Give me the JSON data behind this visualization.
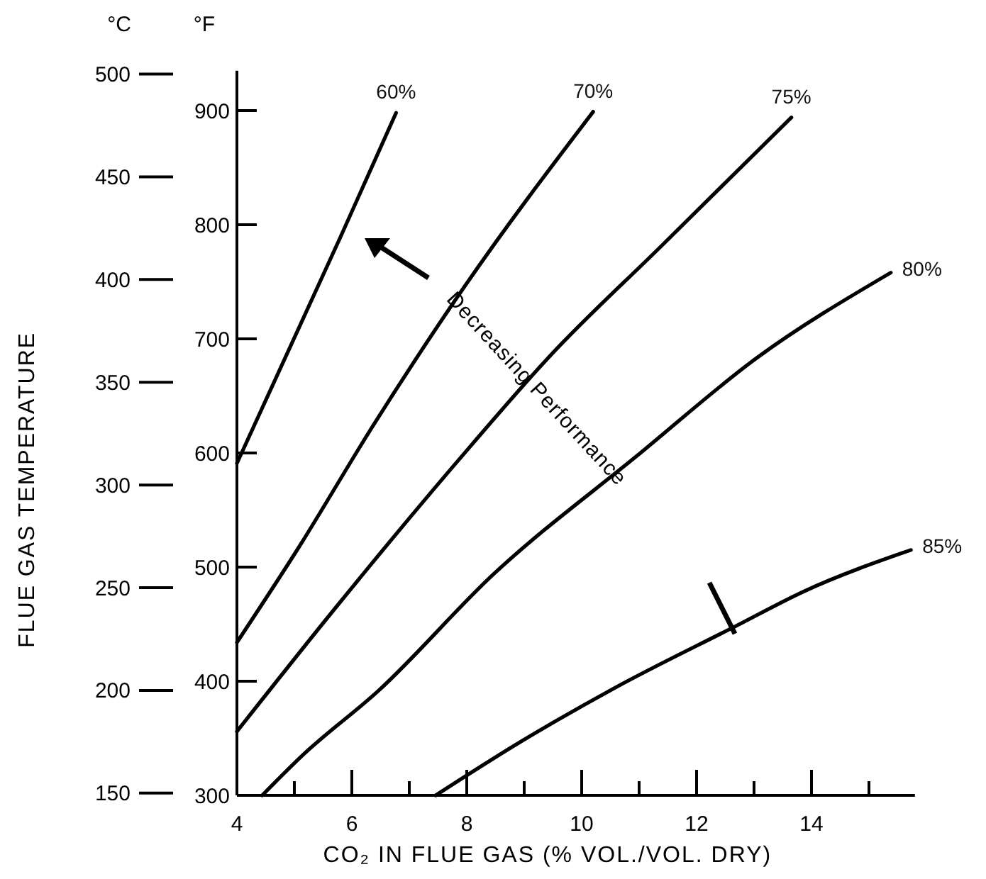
{
  "chart_data": {
    "type": "line",
    "xlabel": "CO₂ IN FLUE GAS (% VOL./VOL. DRY)",
    "ylabel": "°F",
    "y2label": "°C",
    "annotations": [
      "FLUE GAS TEMPERATURE",
      "Decreasing Performance"
    ],
    "xlim": [
      4,
      15.8
    ],
    "xticks": [
      4,
      {
        "value": 5,
        "label": null
      },
      6,
      {
        "value": 7,
        "label": null
      },
      8,
      {
        "value": 9,
        "label": null
      },
      10,
      {
        "value": 11,
        "label": null
      },
      12,
      {
        "value": 13,
        "label": null
      },
      14,
      {
        "value": 15,
        "label": null
      }
    ],
    "ylim": [
      300,
      935
    ],
    "yticks": [
      300,
      400,
      500,
      600,
      700,
      800,
      900
    ],
    "y2lim": [
      148.9,
      501.7
    ],
    "y2ticks": [
      150,
      200,
      250,
      300,
      350,
      400,
      450,
      500
    ],
    "grid": false,
    "marker": "none",
    "line_style": "solid",
    "series": [
      {
        "name": "60%",
        "color": "#000000",
        "x": [
          4,
          5.8,
          6.77
        ],
        "values": [
          591,
          789,
          898
        ]
      },
      {
        "name": "70%",
        "color": "#000000",
        "x": [
          4,
          5.06,
          6.37,
          7.95,
          10.2
        ],
        "values": [
          434,
          516,
          624,
          745,
          899
        ]
      },
      {
        "name": "75%",
        "color": "#000000",
        "x": [
          4,
          5.63,
          8.1,
          9.43,
          11.4,
          13.65
        ],
        "values": [
          356,
          459,
          608,
          684,
          782,
          894
        ]
      },
      {
        "name": "80%",
        "color": "#000000",
        "x": [
          4.44,
          5.14,
          6.47,
          8.47,
          11,
          13.04,
          15.38
        ],
        "values": [
          300,
          335,
          392,
          494,
          599,
          683,
          758
        ]
      },
      {
        "name": "85%",
        "color": "#000000",
        "x": [
          7.46,
          8.94,
          10.57,
          12.67,
          13.88,
          15.73
        ],
        "values": [
          300,
          347,
          394,
          448,
          479,
          515
        ]
      }
    ]
  }
}
